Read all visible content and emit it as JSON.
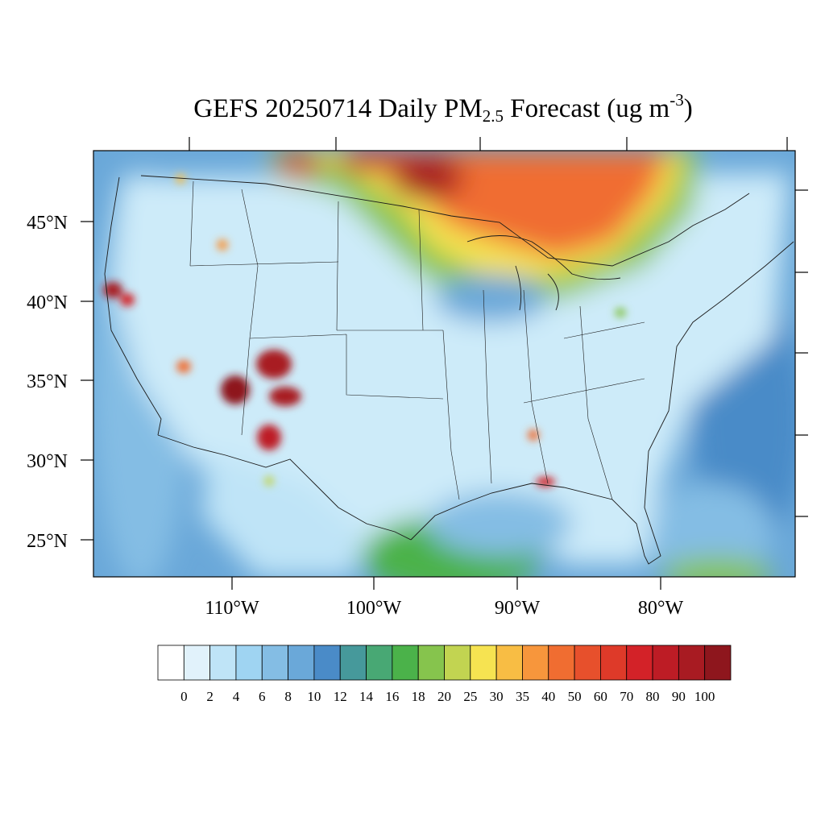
{
  "title": {
    "prefix": "GEFS 20250714 Daily PM",
    "subscript": "2.5",
    "middle": " Forecast (ug m",
    "superscript": "-3",
    "suffix": ")"
  },
  "axes": {
    "lat_labels": [
      "45°N",
      "40°N",
      "35°N",
      "30°N",
      "25°N"
    ],
    "lon_labels": [
      "110°W",
      "100°W",
      "90°W",
      "80°W"
    ]
  },
  "colorbar": {
    "labels": [
      "0",
      "2",
      "4",
      "6",
      "8",
      "10",
      "12",
      "14",
      "16",
      "18",
      "20",
      "25",
      "30",
      "35",
      "40",
      "50",
      "60",
      "70",
      "80",
      "90",
      "100"
    ],
    "colors": [
      "#ffffff",
      "#e1f2fb",
      "#bfe4f7",
      "#9fd4f2",
      "#84bde4",
      "#6aa8d9",
      "#4a8bc8",
      "#46999b",
      "#48a874",
      "#4bb24a",
      "#86c44d",
      "#c2d451",
      "#f6e351",
      "#f8bd44",
      "#f7963c",
      "#f06d31",
      "#e7502c",
      "#de3a29",
      "#d32228",
      "#bd1c25",
      "#a81b22",
      "#8e161d"
    ]
  },
  "colors": {
    "ocean": "#6aa8d9",
    "land_base": "#cdebf9",
    "boundary": "#1a1a1a"
  }
}
